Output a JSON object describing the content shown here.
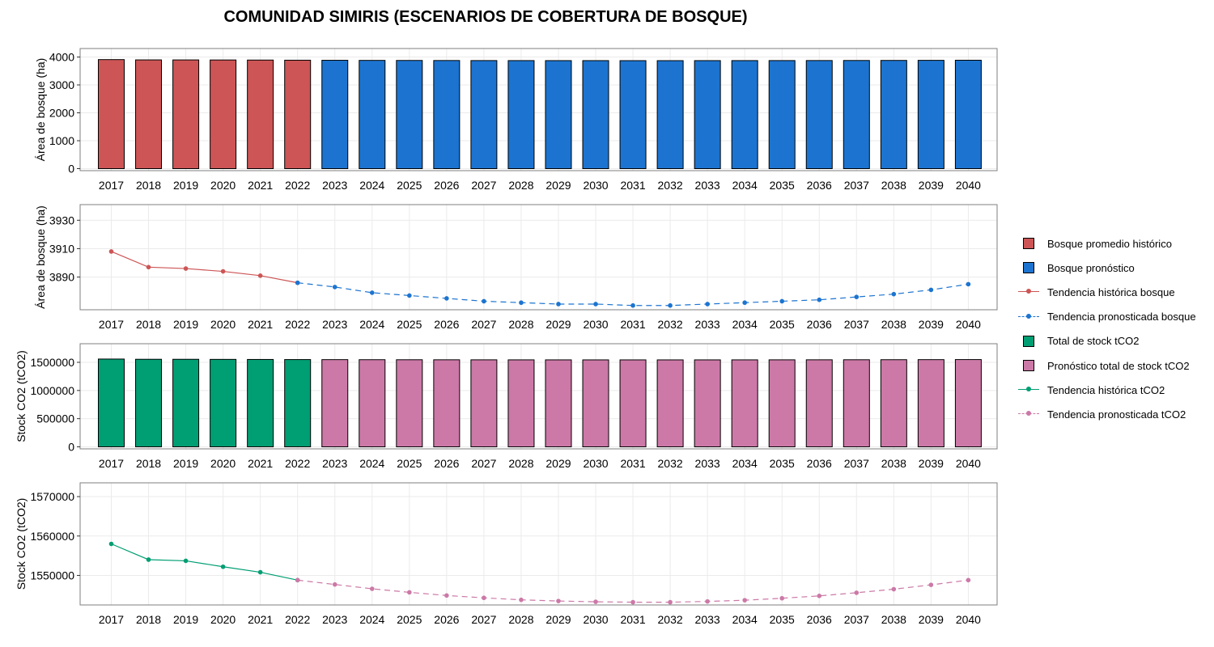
{
  "title": "COMUNIDAD SIMIRIS (ESCENARIOS DE COBERTURA DE BOSQUE)",
  "colors": {
    "historical_forest": "#cd5555",
    "forecast_forest": "#1c74d0",
    "historical_co2": "#009e73",
    "forecast_co2": "#cc79a7"
  },
  "legend": [
    {
      "label": "Bosque promedio histórico",
      "kind": "swatch",
      "color": "#cd5555"
    },
    {
      "label": "Bosque pronóstico",
      "kind": "swatch",
      "color": "#1c74d0"
    },
    {
      "label": "Tendencia histórica bosque",
      "kind": "line",
      "color": "#cd5555",
      "dashed": false
    },
    {
      "label": "Tendencia pronosticada bosque",
      "kind": "line",
      "color": "#1c74d0",
      "dashed": true
    },
    {
      "label": "Total de stock tCO2",
      "kind": "swatch",
      "color": "#009e73"
    },
    {
      "label": "Pronóstico total de stock tCO2",
      "kind": "swatch",
      "color": "#cc79a7"
    },
    {
      "label": "Tendencia histórica tCO2",
      "kind": "line",
      "color": "#009e73",
      "dashed": false
    },
    {
      "label": "Tendencia pronosticada tCO2",
      "kind": "line",
      "color": "#cc79a7",
      "dashed": true
    }
  ],
  "chart_data": [
    {
      "type": "bar",
      "ylabel": "Área de bosque (ha)",
      "ylim": [
        0,
        4000
      ],
      "yticks": [
        "0",
        "1000",
        "2000",
        "3000",
        "4000"
      ],
      "categories": [
        "2017",
        "2018",
        "2019",
        "2020",
        "2021",
        "2022",
        "2023",
        "2024",
        "2025",
        "2026",
        "2027",
        "2028",
        "2029",
        "2030",
        "2031",
        "2032",
        "2033",
        "2034",
        "2035",
        "2036",
        "2037",
        "2038",
        "2039",
        "2040"
      ],
      "series": [
        {
          "name": "Bosque promedio histórico",
          "color": "#cd5555",
          "values": [
            3908,
            3897,
            3896,
            3894,
            3891,
            3886,
            null,
            null,
            null,
            null,
            null,
            null,
            null,
            null,
            null,
            null,
            null,
            null,
            null,
            null,
            null,
            null,
            null,
            null
          ]
        },
        {
          "name": "Bosque pronóstico",
          "color": "#1c74d0",
          "values": [
            null,
            null,
            null,
            null,
            null,
            null,
            3883,
            3879,
            3877,
            3875,
            3873,
            3872,
            3871,
            3871,
            3870,
            3870,
            3871,
            3872,
            3873,
            3874,
            3876,
            3878,
            3881,
            3885
          ]
        }
      ],
      "grid": true
    },
    {
      "type": "line",
      "ylabel": "Área de bosque (ha)",
      "ylim": [
        3867,
        3941
      ],
      "yticks": [
        "3890",
        "3910",
        "3930"
      ],
      "categories": [
        "2017",
        "2018",
        "2019",
        "2020",
        "2021",
        "2022",
        "2023",
        "2024",
        "2025",
        "2026",
        "2027",
        "2028",
        "2029",
        "2030",
        "2031",
        "2032",
        "2033",
        "2034",
        "2035",
        "2036",
        "2037",
        "2038",
        "2039",
        "2040"
      ],
      "series": [
        {
          "name": "Tendencia histórica bosque",
          "color": "#cd5555",
          "dashed": false,
          "values": [
            3908,
            3897,
            3896,
            3894,
            3891,
            3886,
            null,
            null,
            null,
            null,
            null,
            null,
            null,
            null,
            null,
            null,
            null,
            null,
            null,
            null,
            null,
            null,
            null,
            null
          ]
        },
        {
          "name": "Tendencia pronosticada bosque",
          "color": "#1c74d0",
          "dashed": true,
          "values": [
            null,
            null,
            null,
            null,
            null,
            3886,
            3883,
            3879,
            3877,
            3875,
            3873,
            3872,
            3871,
            3871,
            3870,
            3870,
            3871,
            3872,
            3873,
            3874,
            3876,
            3878,
            3881,
            3885
          ]
        }
      ],
      "grid": true
    },
    {
      "type": "bar",
      "ylabel": "Stock CO2 (tCO2)",
      "ylim": [
        0,
        1550000
      ],
      "yticks": [
        "0",
        "500000",
        "1000000",
        "1500000"
      ],
      "categories": [
        "2017",
        "2018",
        "2019",
        "2020",
        "2021",
        "2022",
        "2023",
        "2024",
        "2025",
        "2026",
        "2027",
        "2028",
        "2029",
        "2030",
        "2031",
        "2032",
        "2033",
        "2034",
        "2035",
        "2036",
        "2037",
        "2038",
        "2039",
        "2040"
      ],
      "series": [
        {
          "name": "Total de stock tCO2",
          "color": "#009e73",
          "values": [
            1558000,
            1554000,
            1553700,
            1552200,
            1550800,
            1548800,
            null,
            null,
            null,
            null,
            null,
            null,
            null,
            null,
            null,
            null,
            null,
            null,
            null,
            null,
            null,
            null,
            null,
            null
          ]
        },
        {
          "name": "Pronóstico total de stock tCO2",
          "color": "#cc79a7",
          "values": [
            null,
            null,
            null,
            null,
            null,
            null,
            1547700,
            1546600,
            1545700,
            1544900,
            1544300,
            1543800,
            1543500,
            1543300,
            1543200,
            1543200,
            1543400,
            1543700,
            1544200,
            1544800,
            1545600,
            1546500,
            1547600,
            1548800
          ]
        }
      ],
      "grid": true
    },
    {
      "type": "line",
      "ylabel": "Stock CO2 (tCO2)",
      "ylim": [
        1542500,
        1573500
      ],
      "yticks": [
        "1550000",
        "1560000",
        "1570000"
      ],
      "categories": [
        "2017",
        "2018",
        "2019",
        "2020",
        "2021",
        "2022",
        "2023",
        "2024",
        "2025",
        "2026",
        "2027",
        "2028",
        "2029",
        "2030",
        "2031",
        "2032",
        "2033",
        "2034",
        "2035",
        "2036",
        "2037",
        "2038",
        "2039",
        "2040"
      ],
      "series": [
        {
          "name": "Tendencia histórica tCO2",
          "color": "#009e73",
          "dashed": false,
          "values": [
            1558000,
            1554000,
            1553700,
            1552200,
            1550800,
            1548800,
            null,
            null,
            null,
            null,
            null,
            null,
            null,
            null,
            null,
            null,
            null,
            null,
            null,
            null,
            null,
            null,
            null,
            null
          ]
        },
        {
          "name": "Tendencia pronosticada tCO2",
          "color": "#cc79a7",
          "dashed": true,
          "values": [
            null,
            null,
            null,
            null,
            null,
            1548800,
            1547700,
            1546600,
            1545700,
            1544900,
            1544300,
            1543800,
            1543500,
            1543300,
            1543200,
            1543200,
            1543400,
            1543700,
            1544200,
            1544800,
            1545600,
            1546500,
            1547600,
            1548800
          ]
        }
      ],
      "grid": true
    }
  ]
}
